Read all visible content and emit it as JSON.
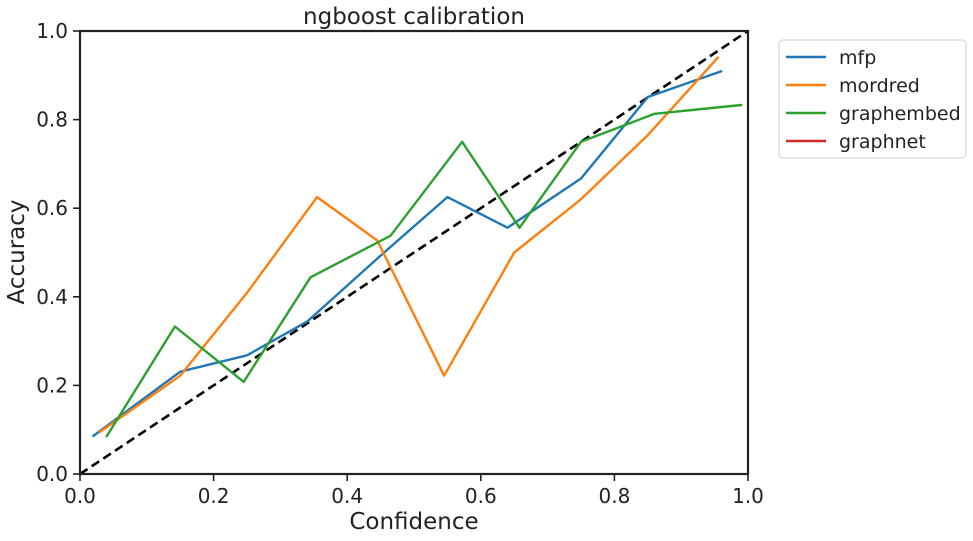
{
  "chart_data": {
    "type": "line",
    "title": "ngboost calibration",
    "xlabel": "Confidence",
    "ylabel": "Accuracy",
    "xlim": [
      0.0,
      1.0
    ],
    "ylim": [
      0.0,
      1.0
    ],
    "xticks": [
      "0.0",
      "0.2",
      "0.4",
      "0.6",
      "0.8",
      "1.0"
    ],
    "yticks": [
      "0.0",
      "0.2",
      "0.4",
      "0.6",
      "0.8",
      "1.0"
    ],
    "grid": false,
    "legend_position": "outside-top-right",
    "reference_line": {
      "style": "dashed",
      "color": "#000000",
      "x": [
        0.0,
        1.0
      ],
      "y": [
        0.0,
        1.0
      ]
    },
    "series": [
      {
        "name": "mfp",
        "color": "#1f77b4",
        "x": [
          0.02,
          0.15,
          0.25,
          0.34,
          0.45,
          0.55,
          0.64,
          0.75,
          0.85,
          0.96
        ],
        "y": [
          0.086,
          0.231,
          0.268,
          0.344,
          0.493,
          0.625,
          0.556,
          0.667,
          0.851,
          0.909
        ]
      },
      {
        "name": "mordred",
        "color": "#ff7f0e",
        "x": [
          0.03,
          0.15,
          0.25,
          0.355,
          0.445,
          0.545,
          0.65,
          0.75,
          0.85,
          0.955
        ],
        "y": [
          0.095,
          0.222,
          0.409,
          0.625,
          0.527,
          0.222,
          0.5,
          0.62,
          0.765,
          0.94
        ]
      },
      {
        "name": "graphembed",
        "color": "#2ca02c",
        "x": [
          0.04,
          0.142,
          0.245,
          0.345,
          0.465,
          0.572,
          0.658,
          0.75,
          0.86,
          0.99
        ],
        "y": [
          0.085,
          0.333,
          0.208,
          0.444,
          0.538,
          0.75,
          0.556,
          0.75,
          0.813,
          0.833
        ]
      },
      {
        "name": "graphnet",
        "color": "#d62728",
        "x": [],
        "y": []
      }
    ]
  }
}
